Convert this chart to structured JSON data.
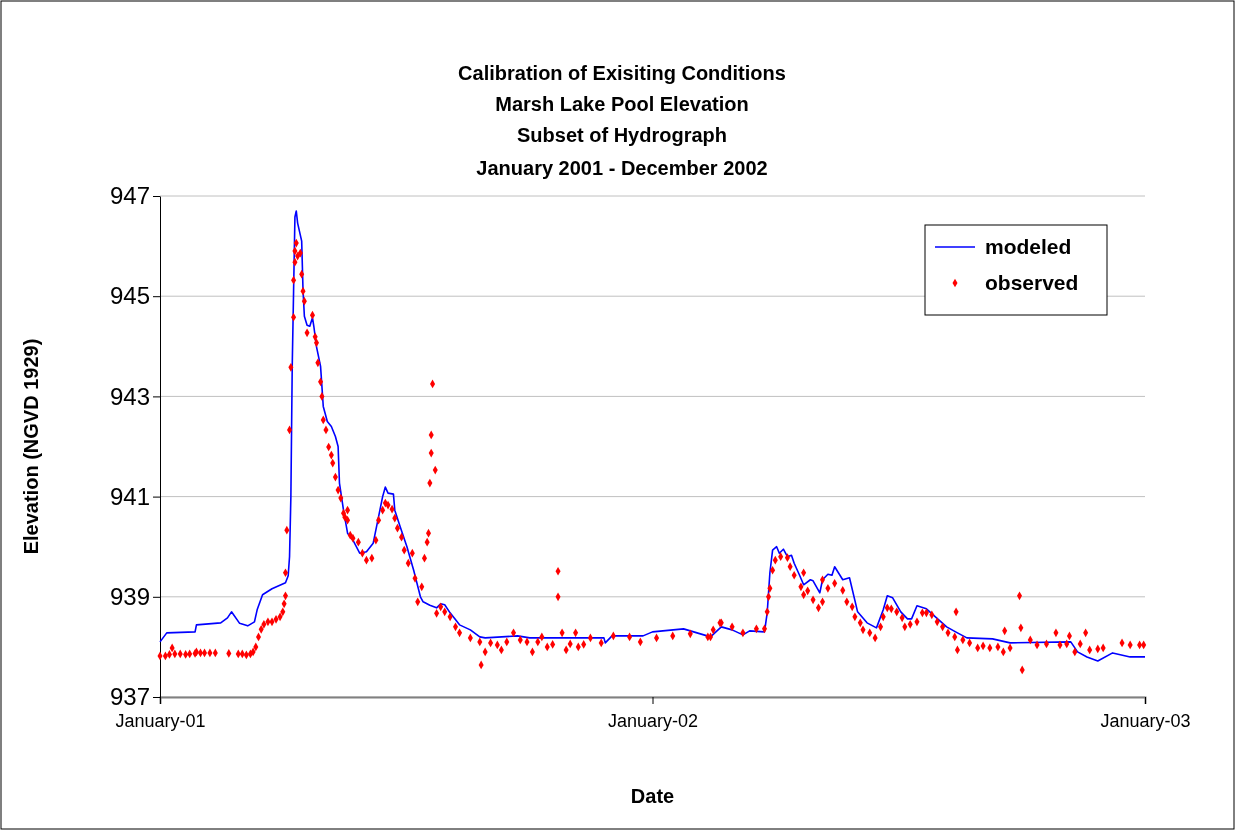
{
  "chart_data": {
    "type": "line",
    "title": "Calibration of Exisiting Conditions\nMarsh Lake Pool Elevation\nSubset of Hydrograph",
    "subtitle": "January 2001 - December 2002",
    "xlabel": "Date",
    "ylabel": "Elevation (NGVD 1929)",
    "xlim": [
      "2001-01-01",
      "2003-01-01"
    ],
    "xticks": [
      {
        "value": "2001-01-01",
        "label": "January-01"
      },
      {
        "value": "2002-01-01",
        "label": "January-02"
      },
      {
        "value": "2003-01-01",
        "label": "January-03"
      }
    ],
    "ylim": [
      937,
      947
    ],
    "yticks": [
      937,
      939,
      941,
      943,
      945,
      947
    ],
    "grid": "y",
    "legend": "top right",
    "series": [
      {
        "name": "modeled",
        "color": "#0000ff",
        "x": [
          "2001-01-01",
          "2001-01-06",
          "2001-01-27",
          "2001-01-28",
          "2001-02-15",
          "2001-02-20",
          "2001-02-23",
          "2001-03-01",
          "2001-03-07",
          "2001-03-12",
          "2001-03-14",
          "2001-03-18",
          "2001-03-25",
          "2001-04-04",
          "2001-04-06",
          "2001-04-07",
          "2001-04-08",
          "2001-04-09",
          "2001-04-10",
          "2001-04-11",
          "2001-04-12",
          "2001-04-13",
          "2001-04-16",
          "2001-04-17",
          "2001-04-18",
          "2001-04-20",
          "2001-04-22",
          "2001-04-24",
          "2001-04-25",
          "2001-04-27",
          "2001-04-30",
          "2001-05-02",
          "2001-05-05",
          "2001-05-08",
          "2001-05-11",
          "2001-05-13",
          "2001-05-14",
          "2001-05-17",
          "2001-05-20",
          "2001-05-24",
          "2001-05-29",
          "2001-06-03",
          "2001-06-08",
          "2001-06-12",
          "2001-06-15",
          "2001-06-17",
          "2001-06-19",
          "2001-06-23",
          "2001-06-24",
          "2001-06-28",
          "2001-07-03",
          "2001-07-08",
          "2001-07-13",
          "2001-07-15",
          "2001-07-20",
          "2001-07-25",
          "2001-07-28",
          "2001-07-31",
          "2001-08-04",
          "2001-08-11",
          "2001-08-19",
          "2001-08-26",
          "2001-08-30",
          "2001-09-23",
          "2001-10-02",
          "2001-11-26",
          "2001-11-27",
          "2001-12-02",
          "2001-12-25",
          "2002-01-01",
          "2002-01-24",
          "2002-02-08",
          "2002-02-13",
          "2002-02-21",
          "2002-03-01",
          "2002-03-09",
          "2002-03-14",
          "2002-03-25",
          "2002-03-27",
          "2002-03-29",
          "2002-03-31",
          "2002-04-03",
          "2002-04-05",
          "2002-04-08",
          "2002-04-10",
          "2002-04-11",
          "2002-04-14",
          "2002-04-16",
          "2002-04-20",
          "2002-04-23",
          "2002-04-28",
          "2002-04-30",
          "2002-05-05",
          "2002-05-07",
          "2002-05-11",
          "2002-05-14",
          "2002-05-16",
          "2002-05-22",
          "2002-05-27",
          "2002-06-02",
          "2002-06-09",
          "2002-06-16",
          "2002-06-21",
          "2002-06-24",
          "2002-06-28",
          "2002-07-04",
          "2002-07-09",
          "2002-07-12",
          "2002-07-16",
          "2002-07-23",
          "2002-07-28",
          "2002-08-07",
          "2002-08-15",
          "2002-08-22",
          "2002-09-10",
          "2002-09-23",
          "2002-11-07",
          "2002-11-12",
          "2002-11-19",
          "2002-11-27",
          "2002-12-08",
          "2002-12-21",
          "2003-01-01"
        ],
        "values": [
          938.1,
          938.28,
          938.3,
          938.44,
          938.48,
          938.58,
          938.7,
          938.47,
          938.42,
          938.5,
          938.74,
          939.04,
          939.16,
          939.28,
          939.42,
          939.8,
          941.0,
          943.6,
          945.1,
          946.58,
          946.7,
          946.46,
          946.1,
          945.12,
          944.6,
          944.42,
          944.4,
          944.57,
          944.4,
          943.99,
          943.6,
          942.8,
          942.5,
          942.4,
          942.2,
          942.0,
          941.27,
          940.73,
          940.27,
          940.13,
          939.87,
          939.9,
          940.07,
          940.6,
          941.0,
          941.19,
          941.07,
          941.05,
          940.73,
          940.4,
          940.0,
          939.53,
          939.0,
          938.9,
          938.83,
          938.78,
          938.86,
          938.84,
          938.68,
          938.44,
          938.34,
          938.2,
          938.18,
          938.22,
          938.18,
          938.18,
          938.08,
          938.22,
          938.22,
          938.3,
          938.36,
          938.24,
          938.2,
          938.4,
          938.34,
          938.24,
          938.32,
          938.3,
          938.68,
          939.48,
          939.93,
          940.0,
          939.87,
          939.95,
          939.85,
          939.8,
          939.83,
          939.67,
          939.43,
          939.24,
          939.34,
          939.32,
          939.08,
          939.34,
          939.45,
          939.43,
          939.6,
          939.34,
          939.38,
          938.7,
          938.48,
          938.38,
          938.74,
          939.02,
          938.98,
          938.7,
          938.56,
          938.56,
          938.82,
          938.76,
          938.64,
          938.4,
          938.28,
          938.18,
          938.16,
          938.08,
          938.1,
          937.9,
          937.8,
          937.72,
          937.88,
          937.8,
          937.8
        ]
      },
      {
        "name": "observed",
        "type": "scatter",
        "marker": "diamond",
        "color": "#ff0000",
        "x": [
          "2001-01-01",
          "2001-01-05",
          "2001-01-08",
          "2001-01-10",
          "2001-01-12",
          "2001-01-16",
          "2001-01-20",
          "2001-01-23",
          "2001-01-27",
          "2001-01-28",
          "2001-01-31",
          "2001-02-03",
          "2001-02-07",
          "2001-02-11",
          "2001-02-21",
          "2001-02-28",
          "2001-03-03",
          "2001-03-06",
          "2001-03-09",
          "2001-03-11",
          "2001-03-13",
          "2001-03-15",
          "2001-03-17",
          "2001-03-19",
          "2001-03-22",
          "2001-03-25",
          "2001-03-28",
          "2001-03-31",
          "2001-04-02",
          "2001-04-03",
          "2001-04-04",
          "2001-04-04",
          "2001-04-05",
          "2001-04-07",
          "2001-04-08",
          "2001-04-10",
          "2001-04-10",
          "2001-04-11",
          "2001-04-11",
          "2001-04-12",
          "2001-04-13",
          "2001-04-15",
          "2001-04-16",
          "2001-04-17",
          "2001-04-18",
          "2001-04-20",
          "2001-04-24",
          "2001-04-26",
          "2001-04-27",
          "2001-04-28",
          "2001-04-30",
          "2001-05-01",
          "2001-05-02",
          "2001-05-04",
          "2001-05-06",
          "2001-05-08",
          "2001-05-09",
          "2001-05-11",
          "2001-05-13",
          "2001-05-15",
          "2001-05-17",
          "2001-05-18",
          "2001-05-20",
          "2001-05-20",
          "2001-05-22",
          "2001-05-24",
          "2001-05-28",
          "2001-05-31",
          "2001-06-03",
          "2001-06-07",
          "2001-06-10",
          "2001-06-12",
          "2001-06-15",
          "2001-06-17",
          "2001-06-19",
          "2001-06-22",
          "2001-06-24",
          "2001-06-26",
          "2001-06-29",
          "2001-07-01",
          "2001-07-04",
          "2001-07-07",
          "2001-07-09",
          "2001-07-11",
          "2001-07-14",
          "2001-07-16",
          "2001-07-18",
          "2001-07-19",
          "2001-07-20",
          "2001-07-21",
          "2001-07-21",
          "2001-07-22",
          "2001-07-24",
          "2001-07-25",
          "2001-07-28",
          "2001-07-31",
          "2001-08-04",
          "2001-08-08",
          "2001-08-11",
          "2001-08-19",
          "2001-08-26",
          "2001-08-27",
          "2001-08-30",
          "2001-09-03",
          "2001-09-08",
          "2001-09-11",
          "2001-09-15",
          "2001-09-20",
          "2001-09-25",
          "2001-09-30",
          "2001-10-04",
          "2001-10-08",
          "2001-10-11",
          "2001-10-15",
          "2001-10-19",
          "2001-10-23",
          "2001-10-23",
          "2001-10-26",
          "2001-10-29",
          "2001-11-01",
          "2001-11-05",
          "2001-11-07",
          "2001-11-11",
          "2001-11-16",
          "2001-11-24",
          "2001-12-03",
          "2001-12-15",
          "2001-12-23",
          "2002-01-04",
          "2002-01-16",
          "2002-01-29",
          "2002-02-11",
          "2002-02-13",
          "2002-02-15",
          "2002-02-20",
          "2002-02-21",
          "2002-03-01",
          "2002-03-09",
          "2002-03-19",
          "2002-03-25",
          "2002-03-27",
          "2002-03-28",
          "2002-03-29",
          "2002-03-31",
          "2002-04-02",
          "2002-04-06",
          "2002-04-11",
          "2002-04-13",
          "2002-04-16",
          "2002-04-21",
          "2002-04-23",
          "2002-04-23",
          "2002-04-26",
          "2002-04-30",
          "2002-05-04",
          "2002-05-07",
          "2002-05-07",
          "2002-05-11",
          "2002-05-16",
          "2002-05-22",
          "2002-05-25",
          "2002-05-29",
          "2002-05-31",
          "2002-06-04",
          "2002-06-06",
          "2002-06-11",
          "2002-06-15",
          "2002-06-19",
          "2002-06-21",
          "2002-06-24",
          "2002-06-27",
          "2002-07-01",
          "2002-07-05",
          "2002-07-07",
          "2002-07-11",
          "2002-07-16",
          "2002-07-20",
          "2002-07-23",
          "2002-07-27",
          "2002-07-31",
          "2002-08-04",
          "2002-08-08",
          "2002-08-13",
          "2002-08-14",
          "2002-08-15",
          "2002-08-19",
          "2002-08-24",
          "2002-08-30",
          "2002-09-03",
          "2002-09-08",
          "2002-09-14",
          "2002-09-18",
          "2002-09-19",
          "2002-09-23",
          "2002-09-30",
          "2002-10-01",
          "2002-10-02",
          "2002-10-08",
          "2002-10-13",
          "2002-10-20",
          "2002-10-27",
          "2002-10-30",
          "2002-11-04",
          "2002-11-06",
          "2002-11-10",
          "2002-11-14",
          "2002-11-18",
          "2002-11-21",
          "2002-11-27",
          "2002-12-01",
          "2002-12-15",
          "2002-12-21",
          "2002-12-28",
          "2002-12-31"
        ],
        "values": [
          937.82,
          937.82,
          937.85,
          937.98,
          937.86,
          937.86,
          937.85,
          937.86,
          937.87,
          937.9,
          937.88,
          937.88,
          937.88,
          937.88,
          937.87,
          937.86,
          937.86,
          937.84,
          937.86,
          937.9,
          938.0,
          938.2,
          938.35,
          938.45,
          938.5,
          938.5,
          938.55,
          938.6,
          938.7,
          938.86,
          939.02,
          939.48,
          940.33,
          942.33,
          943.58,
          944.58,
          945.32,
          945.68,
          945.9,
          946.06,
          945.8,
          945.86,
          945.44,
          945.1,
          944.9,
          944.27,
          944.62,
          944.19,
          944.07,
          943.67,
          943.29,
          943.0,
          942.53,
          942.33,
          941.99,
          941.83,
          941.67,
          941.39,
          941.13,
          940.97,
          940.67,
          940.59,
          940.73,
          940.53,
          940.23,
          940.17,
          940.09,
          939.87,
          939.73,
          939.77,
          940.13,
          940.53,
          940.73,
          940.87,
          940.83,
          940.75,
          940.57,
          940.37,
          940.19,
          939.93,
          939.67,
          939.87,
          939.37,
          938.9,
          939.2,
          939.77,
          940.09,
          940.27,
          941.27,
          941.87,
          942.23,
          943.25,
          941.53,
          938.67,
          938.8,
          938.7,
          938.6,
          938.4,
          938.28,
          938.18,
          938.1,
          937.64,
          937.9,
          938.08,
          938.04,
          937.94,
          938.1,
          938.28,
          938.14,
          938.1,
          937.9,
          938.1,
          938.2,
          938.0,
          938.05,
          939.51,
          939.0,
          938.28,
          937.94,
          938.06,
          938.28,
          938.0,
          938.05,
          938.18,
          938.08,
          938.22,
          938.2,
          938.1,
          938.18,
          938.22,
          938.26,
          938.2,
          938.2,
          938.34,
          938.48,
          938.48,
          938.4,
          938.28,
          938.36,
          938.36,
          938.7,
          939.0,
          939.17,
          939.53,
          939.73,
          939.8,
          939.78,
          939.6,
          939.43,
          939.2,
          939.48,
          939.04,
          939.12,
          938.94,
          938.78,
          938.9,
          939.34,
          939.17,
          939.27,
          939.13,
          938.9,
          938.8,
          938.6,
          938.48,
          938.34,
          938.28,
          938.18,
          938.4,
          938.6,
          938.78,
          938.76,
          938.7,
          938.58,
          938.4,
          938.45,
          938.5,
          938.68,
          938.68,
          938.64,
          938.5,
          938.4,
          938.28,
          938.2,
          938.7,
          937.94,
          938.14,
          938.08,
          937.98,
          938.02,
          937.98,
          938.0,
          937.9,
          938.32,
          937.98,
          939.02,
          938.38,
          937.54,
          938.14,
          938.04,
          938.06,
          938.28,
          938.04,
          938.06,
          938.22,
          937.9,
          938.06,
          938.28,
          937.94,
          937.96,
          937.98,
          938.08,
          938.04,
          938.04,
          938.04
        ]
      }
    ]
  }
}
